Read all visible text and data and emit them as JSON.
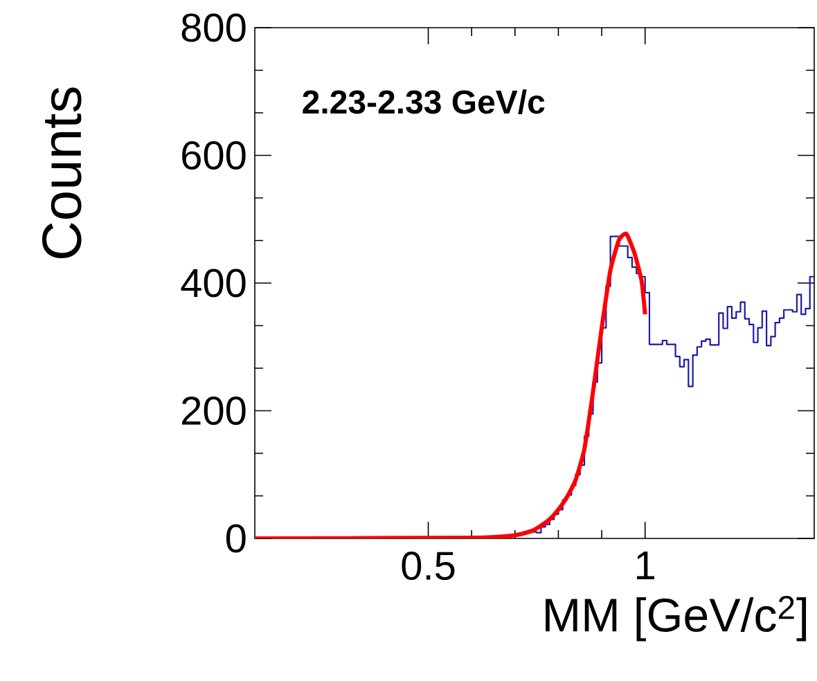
{
  "chart_data": {
    "type": "histogram",
    "title": "**2.23-2.33 GeV/c**",
    "xlabel": "MM [GeV/c$^{2}$]",
    "ylabel": "Counts",
    "bins": [
      0.1,
      0.11,
      0.12,
      0.13,
      0.14,
      0.15,
      0.16,
      0.17,
      0.18,
      0.19,
      0.2,
      0.21,
      0.22,
      0.23,
      0.24,
      0.25,
      0.26,
      0.27,
      0.28,
      0.29,
      0.3,
      0.31,
      0.32,
      0.33,
      0.34,
      0.35,
      0.36,
      0.37,
      0.38,
      0.39,
      0.4,
      0.41,
      0.42,
      0.43,
      0.44,
      0.45,
      0.46,
      0.47,
      0.48,
      0.49,
      0.5,
      0.51,
      0.52,
      0.53,
      0.54,
      0.55,
      0.56,
      0.57,
      0.58,
      0.59,
      0.6,
      0.61,
      0.62,
      0.63,
      0.64,
      0.65,
      0.66,
      0.67,
      0.68,
      0.69,
      0.7,
      0.71,
      0.72,
      0.73,
      0.74,
      0.75,
      0.76,
      0.77,
      0.78,
      0.79,
      0.8,
      0.81,
      0.82,
      0.83,
      0.84,
      0.85,
      0.86,
      0.87,
      0.88,
      0.89,
      0.9,
      0.91,
      0.92,
      0.93,
      0.94,
      0.95,
      0.96,
      0.97,
      0.98,
      0.99,
      1.0,
      1.01,
      1.02,
      1.03,
      1.04,
      1.05,
      1.06,
      1.07,
      1.08,
      1.09,
      1.1,
      1.11,
      1.12,
      1.13,
      1.14,
      1.15,
      1.16,
      1.17,
      1.18,
      1.19,
      1.2,
      1.21,
      1.22,
      1.23,
      1.24,
      1.25,
      1.26,
      1.27,
      1.28,
      1.29,
      1.3,
      1.31,
      1.32,
      1.33,
      1.34,
      1.35,
      1.36,
      1.37,
      1.38,
      1.39
    ],
    "values": [
      0,
      0,
      0,
      0,
      0,
      0,
      0,
      0,
      0,
      0,
      0,
      0,
      0,
      0,
      0,
      0,
      0,
      0,
      0,
      0,
      0,
      0,
      0,
      0,
      0,
      0,
      0,
      0,
      0,
      0,
      0,
      0,
      0,
      0,
      0,
      0,
      0,
      0,
      0,
      0,
      0,
      0,
      0,
      0,
      0,
      0,
      0,
      0,
      0,
      0,
      0,
      0,
      1,
      2,
      3,
      3,
      3,
      3,
      4,
      4,
      5,
      7,
      10,
      12,
      10,
      9,
      18,
      22,
      30,
      38,
      45,
      60,
      68,
      83,
      100,
      115,
      160,
      195,
      245,
      275,
      330,
      395,
      473,
      473,
      458,
      458,
      440,
      425,
      415,
      410,
      385,
      304,
      304,
      304,
      310,
      304,
      304,
      285,
      269,
      280,
      238,
      287,
      300,
      309,
      312,
      303,
      303,
      353,
      329,
      363,
      345,
      355,
      370,
      344,
      335,
      307,
      330,
      356,
      302,
      316,
      338,
      345,
      358,
      358,
      355,
      382,
      351,
      360,
      410
    ],
    "color": "#1a1aa6",
    "series": [
      {
        "type": "line",
        "color": "#ff0000",
        "x": [
          0.1,
          0.6,
          0.7,
          0.74,
          0.76,
          0.78,
          0.8,
          0.82,
          0.84,
          0.86,
          0.88,
          0.9,
          0.92,
          0.94,
          0.957,
          0.976,
          0.992,
          1.0
        ],
        "values": [
          0,
          1,
          5,
          12,
          20,
          30,
          45,
          65,
          92,
          140,
          230,
          330,
          420,
          468,
          477,
          446,
          403,
          351
        ]
      }
    ],
    "xlim": [
      0.1,
      1.39
    ],
    "ylim": [
      0,
      800
    ],
    "xticks": [
      0.5,
      1
    ],
    "yticks": [
      0,
      200,
      400,
      600,
      800
    ]
  }
}
